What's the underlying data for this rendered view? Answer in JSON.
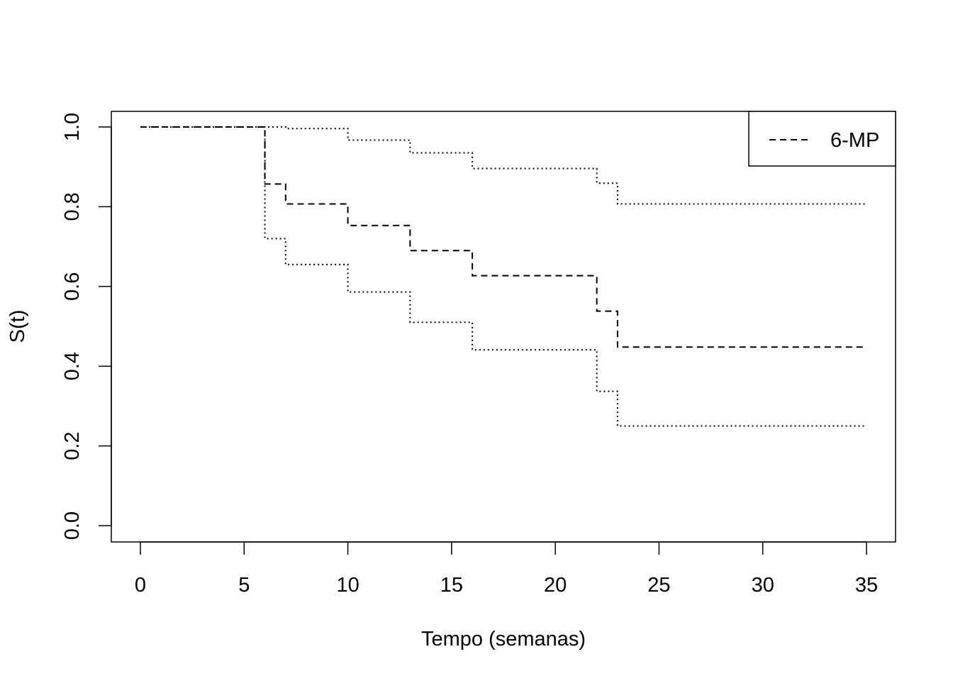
{
  "chart_data": {
    "type": "line",
    "step": true,
    "xlabel": "Tempo (semanas)",
    "ylabel": "S(t)",
    "xlim": [
      0,
      35
    ],
    "ylim": [
      0,
      1
    ],
    "x_ticks": [
      0,
      5,
      10,
      15,
      20,
      25,
      30,
      35
    ],
    "y_ticks": [
      0.0,
      0.2,
      0.4,
      0.6,
      0.8,
      1.0
    ],
    "x_tick_labels": [
      "0",
      "5",
      "10",
      "15",
      "20",
      "25",
      "30",
      "35"
    ],
    "y_tick_labels": [
      "0.0",
      "0.2",
      "0.4",
      "0.6",
      "0.8",
      "1.0"
    ],
    "grid": false,
    "legend": {
      "position": "top-right",
      "label": "6-MP",
      "style": "dashed"
    },
    "series": [
      {
        "name": "6-MP",
        "style": "dashed",
        "x": [
          0,
          6,
          7,
          10,
          13,
          16,
          22,
          23,
          35
        ],
        "y": [
          1.0,
          0.857,
          0.807,
          0.753,
          0.69,
          0.627,
          0.538,
          0.448,
          0.448
        ]
      },
      {
        "style": "dotted",
        "x": [
          0,
          6,
          7,
          10,
          13,
          16,
          22,
          23,
          35
        ],
        "y": [
          1.0,
          1.0,
          0.996,
          0.967,
          0.935,
          0.896,
          0.859,
          0.807,
          0.807
        ]
      },
      {
        "style": "dotted",
        "x": [
          0,
          6,
          7,
          10,
          13,
          16,
          22,
          23,
          35
        ],
        "y": [
          1.0,
          0.72,
          0.655,
          0.586,
          0.51,
          0.441,
          0.337,
          0.25,
          0.25
        ]
      }
    ]
  }
}
